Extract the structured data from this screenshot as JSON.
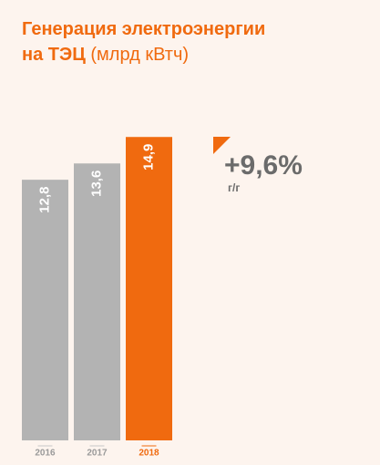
{
  "chart_data": {
    "type": "bar",
    "title": [
      "Генерация электроэнергии",
      "на ТЭЦ"
    ],
    "unit": "(млрд кВтч)",
    "categories": [
      "2016",
      "2017",
      "2018"
    ],
    "values": [
      12.8,
      13.6,
      14.9
    ],
    "value_labels": [
      "12,8",
      "13,6",
      "14,9"
    ],
    "colors": [
      "#b3b3b3",
      "#b3b3b3",
      "#f06a0f"
    ],
    "ylim": [
      0,
      15
    ],
    "annotation": {
      "text": "+9,6%",
      "note": "г/г"
    }
  }
}
